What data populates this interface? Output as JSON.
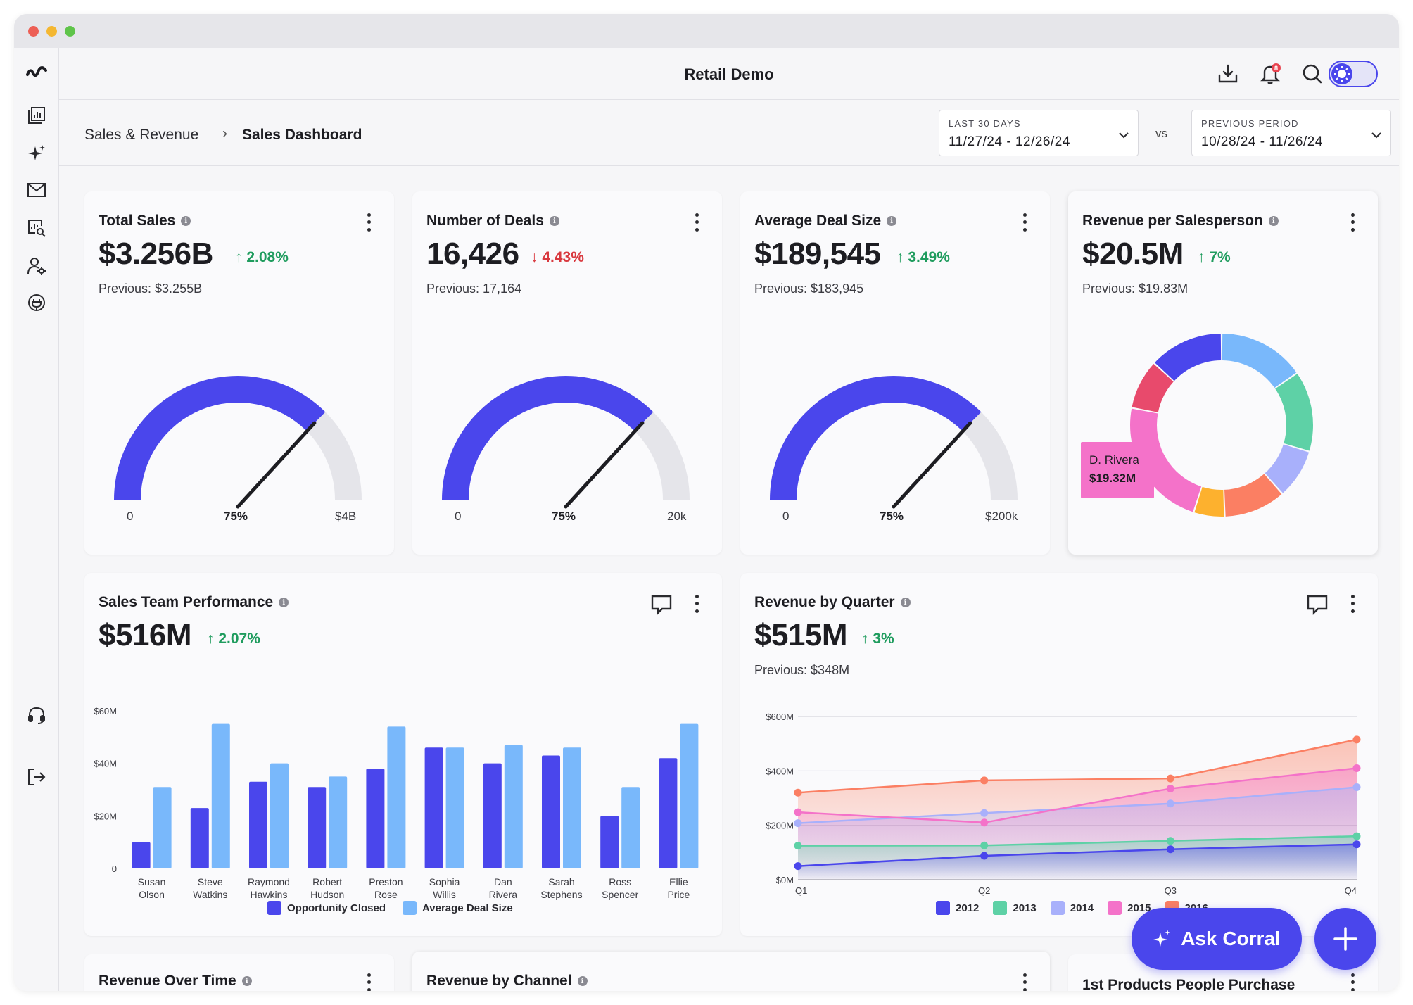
{
  "app": {
    "title": "Retail Demo"
  },
  "colors": {
    "accent": "#4a46ec",
    "up": "#1f9c5e",
    "down": "#d9393f"
  },
  "sidebar": {
    "items": [
      {
        "icon": "brand-logo-icon"
      },
      {
        "icon": "dashboards-icon"
      },
      {
        "icon": "sparkle-icon"
      },
      {
        "icon": "mail-icon"
      },
      {
        "icon": "report-search-icon"
      },
      {
        "icon": "user-settings-icon"
      },
      {
        "icon": "integrations-icon"
      },
      {
        "icon": "support-headset-icon"
      },
      {
        "icon": "logout-icon"
      }
    ]
  },
  "topbar": {
    "icons": [
      "download-icon",
      "bell-icon",
      "search-icon",
      "theme-toggle"
    ],
    "notification_count": "8"
  },
  "breadcrumb": {
    "parent": "Sales & Revenue",
    "separator": "›",
    "current": "Sales Dashboard"
  },
  "date_range": {
    "primary_label": "LAST 30 DAYS",
    "primary_value": "11/27/24 - 12/26/24",
    "vs": "vs",
    "compare_label": "PREVIOUS PERIOD",
    "compare_value": "10/28/24 - 11/26/24"
  },
  "kpis": [
    {
      "title": "Total Sales",
      "value": "$3.256B",
      "delta": "2.08%",
      "direction": "up",
      "previous": "Previous: $3.255B",
      "gauge": {
        "fraction": 0.75,
        "min": "0",
        "mid": "75%",
        "max": "$4B"
      }
    },
    {
      "title": "Number of Deals",
      "value": "16,426",
      "delta": "4.43%",
      "direction": "down",
      "previous": "Previous: 17,164",
      "gauge": {
        "fraction": 0.75,
        "min": "0",
        "mid": "75%",
        "max": "20k"
      }
    },
    {
      "title": "Average Deal Size",
      "value": "$189,545",
      "delta": "3.49%",
      "direction": "up",
      "previous": "Previous: $183,945",
      "gauge": {
        "fraction": 0.75,
        "min": "0",
        "mid": "75%",
        "max": "$200k"
      }
    }
  ],
  "revenue_per_salesperson": {
    "title": "Revenue per Salesperson",
    "value": "$20.5M",
    "delta": "7%",
    "direction": "up",
    "previous": "Previous: $19.83M",
    "tooltip": {
      "name": "D. Rivera",
      "value": "$19.32M"
    },
    "chart_data": {
      "type": "pie",
      "slices": [
        {
          "value": 14,
          "color": "#79b8fb"
        },
        {
          "value": 13,
          "color": "#5ed1a6"
        },
        {
          "value": 8,
          "color": "#a8b0fb"
        },
        {
          "value": 10,
          "color": "#fb7f63"
        },
        {
          "value": 5,
          "color": "#fdb12e"
        },
        {
          "value": 21,
          "color": "#f472c9"
        },
        {
          "value": 8,
          "color": "#e84a6c"
        },
        {
          "value": 12,
          "color": "#4a46ec"
        }
      ]
    }
  },
  "sales_team": {
    "title": "Sales Team Performance",
    "value": "$516M",
    "delta": "2.07%",
    "direction": "up",
    "chart_data": {
      "type": "bar",
      "categories": [
        [
          "Susan",
          "Olson"
        ],
        [
          "Steve",
          "Watkins"
        ],
        [
          "Raymond",
          "Hawkins"
        ],
        [
          "Robert",
          "Hudson"
        ],
        [
          "Preston",
          "Rose"
        ],
        [
          "Sophia",
          "Willis"
        ],
        [
          "Dan",
          "Rivera"
        ],
        [
          "Sarah",
          "Stephens"
        ],
        [
          "Ross",
          "Spencer"
        ],
        [
          "Ellie",
          "Price"
        ]
      ],
      "series": [
        {
          "name": "Opportunity Closed",
          "color": "#4a46ec",
          "values": [
            10,
            23,
            33,
            31,
            38,
            46,
            40,
            43,
            20,
            42
          ]
        },
        {
          "name": "Average Deal Size",
          "color": "#79b8fb",
          "values": [
            31,
            55,
            40,
            35,
            54,
            46,
            47,
            46,
            31,
            55
          ]
        }
      ],
      "ylim": [
        0,
        60
      ],
      "yticks": [
        "0",
        "$20M",
        "$40M",
        "$60M"
      ]
    }
  },
  "revenue_quarter": {
    "title": "Revenue by Quarter",
    "value": "$515M",
    "delta": "3%",
    "direction": "up",
    "previous": "Previous: $348M",
    "chart_data": {
      "type": "area",
      "x": [
        "Q1",
        "Q2",
        "Q3",
        "Q4"
      ],
      "ylim": [
        0,
        600
      ],
      "yticks": [
        "$0M",
        "$200M",
        "$400M",
        "$600M"
      ],
      "series": [
        {
          "name": "2012",
          "color": "#4a46ec",
          "values": [
            50,
            88,
            112,
            130
          ]
        },
        {
          "name": "2013",
          "color": "#5ed1a6",
          "values": [
            125,
            126,
            143,
            160
          ]
        },
        {
          "name": "2014",
          "color": "#a8b0fb",
          "values": [
            208,
            245,
            280,
            340
          ]
        },
        {
          "name": "2015",
          "color": "#f472c9",
          "values": [
            248,
            210,
            335,
            410
          ]
        },
        {
          "name": "2016",
          "color": "#fb7f63",
          "values": [
            320,
            365,
            372,
            515
          ]
        }
      ]
    }
  },
  "bottom_cards": [
    {
      "title": "Revenue Over Time"
    },
    {
      "title": "Revenue by Channel"
    },
    {
      "title": "1st Products People Purchase"
    }
  ],
  "actions": {
    "ask": "Ask Corral"
  }
}
